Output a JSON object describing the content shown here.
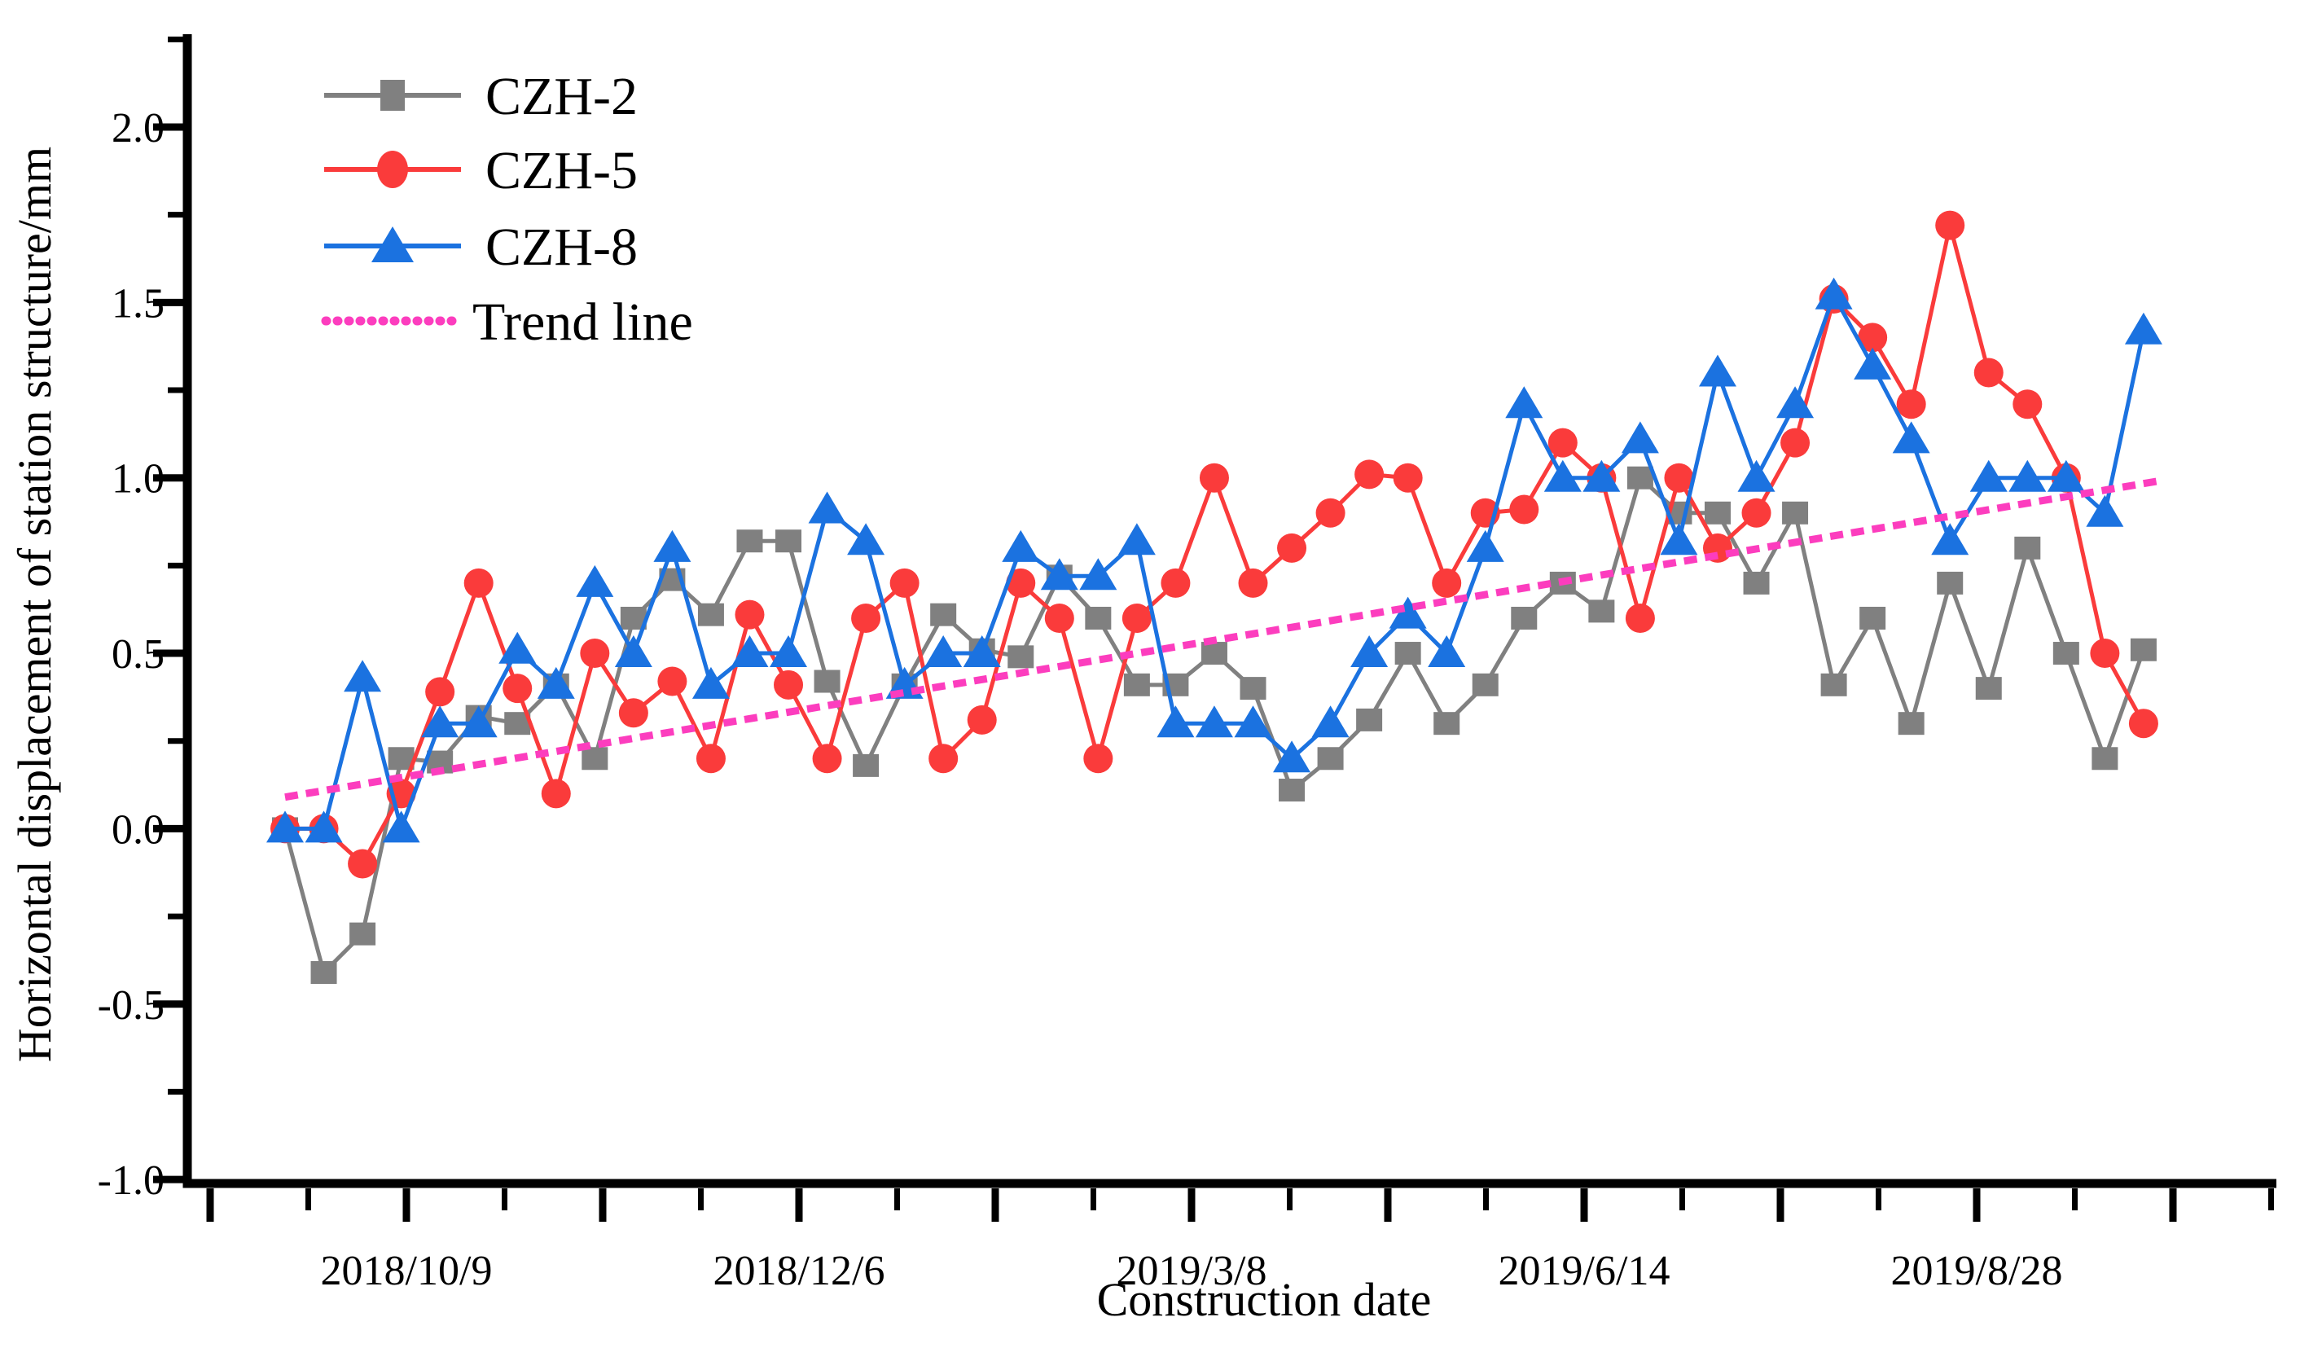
{
  "chart_data": {
    "type": "line",
    "title": "",
    "xlabel": "Construction date",
    "ylabel": "Horizontal displacement of station structure/mm",
    "background": "#FFFFFF",
    "grid": false,
    "legend_position": "top-left",
    "x_axis": {
      "n_major_ticks": 11,
      "labeled_major_tick_indices": [
        1,
        3,
        5,
        7,
        9
      ],
      "tick_labels": [
        "2018/10/9",
        "2018/12/6",
        "2019/3/8",
        "2019/6/14",
        "2019/8/28"
      ]
    },
    "y_axis": {
      "tick_labels": [
        "2.0",
        "1.5",
        "1.0",
        "0.5",
        "0.0",
        "-0.5",
        "-1.0"
      ],
      "tick_values": [
        2.0,
        1.5,
        1.0,
        0.5,
        0.0,
        -0.5,
        -1.0
      ],
      "minor_tick_values": [
        2.25,
        1.75,
        1.25,
        0.75,
        0.25,
        -0.25,
        -0.75
      ],
      "range": [
        -1.0,
        2.3
      ]
    },
    "n_points": 49,
    "series": [
      {
        "name": "CZH-2",
        "marker": "square",
        "color": "#808080",
        "values": [
          0.0,
          -0.41,
          -0.3,
          0.2,
          0.19,
          0.32,
          0.3,
          0.41,
          0.2,
          0.6,
          0.71,
          0.61,
          0.82,
          0.82,
          0.42,
          0.18,
          0.41,
          0.61,
          0.51,
          0.49,
          0.72,
          0.6,
          0.41,
          0.41,
          0.5,
          0.4,
          0.11,
          0.2,
          0.31,
          0.5,
          0.3,
          0.41,
          0.6,
          0.7,
          0.62,
          1.0,
          0.9,
          0.9,
          0.7,
          0.9,
          0.41,
          0.6,
          0.3,
          0.7,
          0.4,
          0.8,
          0.5,
          0.2,
          0.51
        ]
      },
      {
        "name": "CZH-5",
        "marker": "circle",
        "color": "#FA3B3B",
        "values": [
          0.0,
          0.0,
          -0.1,
          0.1,
          0.39,
          0.7,
          0.4,
          0.1,
          0.5,
          0.33,
          0.42,
          0.2,
          0.61,
          0.41,
          0.2,
          0.6,
          0.7,
          0.2,
          0.31,
          0.7,
          0.6,
          0.2,
          0.6,
          0.7,
          1.0,
          0.7,
          0.8,
          0.9,
          1.01,
          1.0,
          0.7,
          0.9,
          0.91,
          1.1,
          1.0,
          0.6,
          1.0,
          0.8,
          0.9,
          1.1,
          1.51,
          1.4,
          1.21,
          1.72,
          1.3,
          1.21,
          1.0,
          0.5,
          0.3
        ]
      },
      {
        "name": "CZH-8",
        "marker": "triangle",
        "color": "#1B72E0",
        "values": [
          0.0,
          0.0,
          0.43,
          0.0,
          0.3,
          0.3,
          0.51,
          0.41,
          0.7,
          0.5,
          0.8,
          0.41,
          0.5,
          0.5,
          0.91,
          0.82,
          0.41,
          0.5,
          0.5,
          0.8,
          0.72,
          0.72,
          0.82,
          0.3,
          0.3,
          0.3,
          0.2,
          0.3,
          0.5,
          0.61,
          0.5,
          0.8,
          1.21,
          1.0,
          1.0,
          1.11,
          0.82,
          1.3,
          1.0,
          1.21,
          1.52,
          1.32,
          1.11,
          0.82,
          1.0,
          1.0,
          1.0,
          0.9,
          1.42
        ]
      }
    ],
    "trend": {
      "name": "Trend line",
      "color": "#FC3DBE",
      "style": "dotted",
      "start_value": 0.09,
      "end_value": 0.99
    }
  }
}
